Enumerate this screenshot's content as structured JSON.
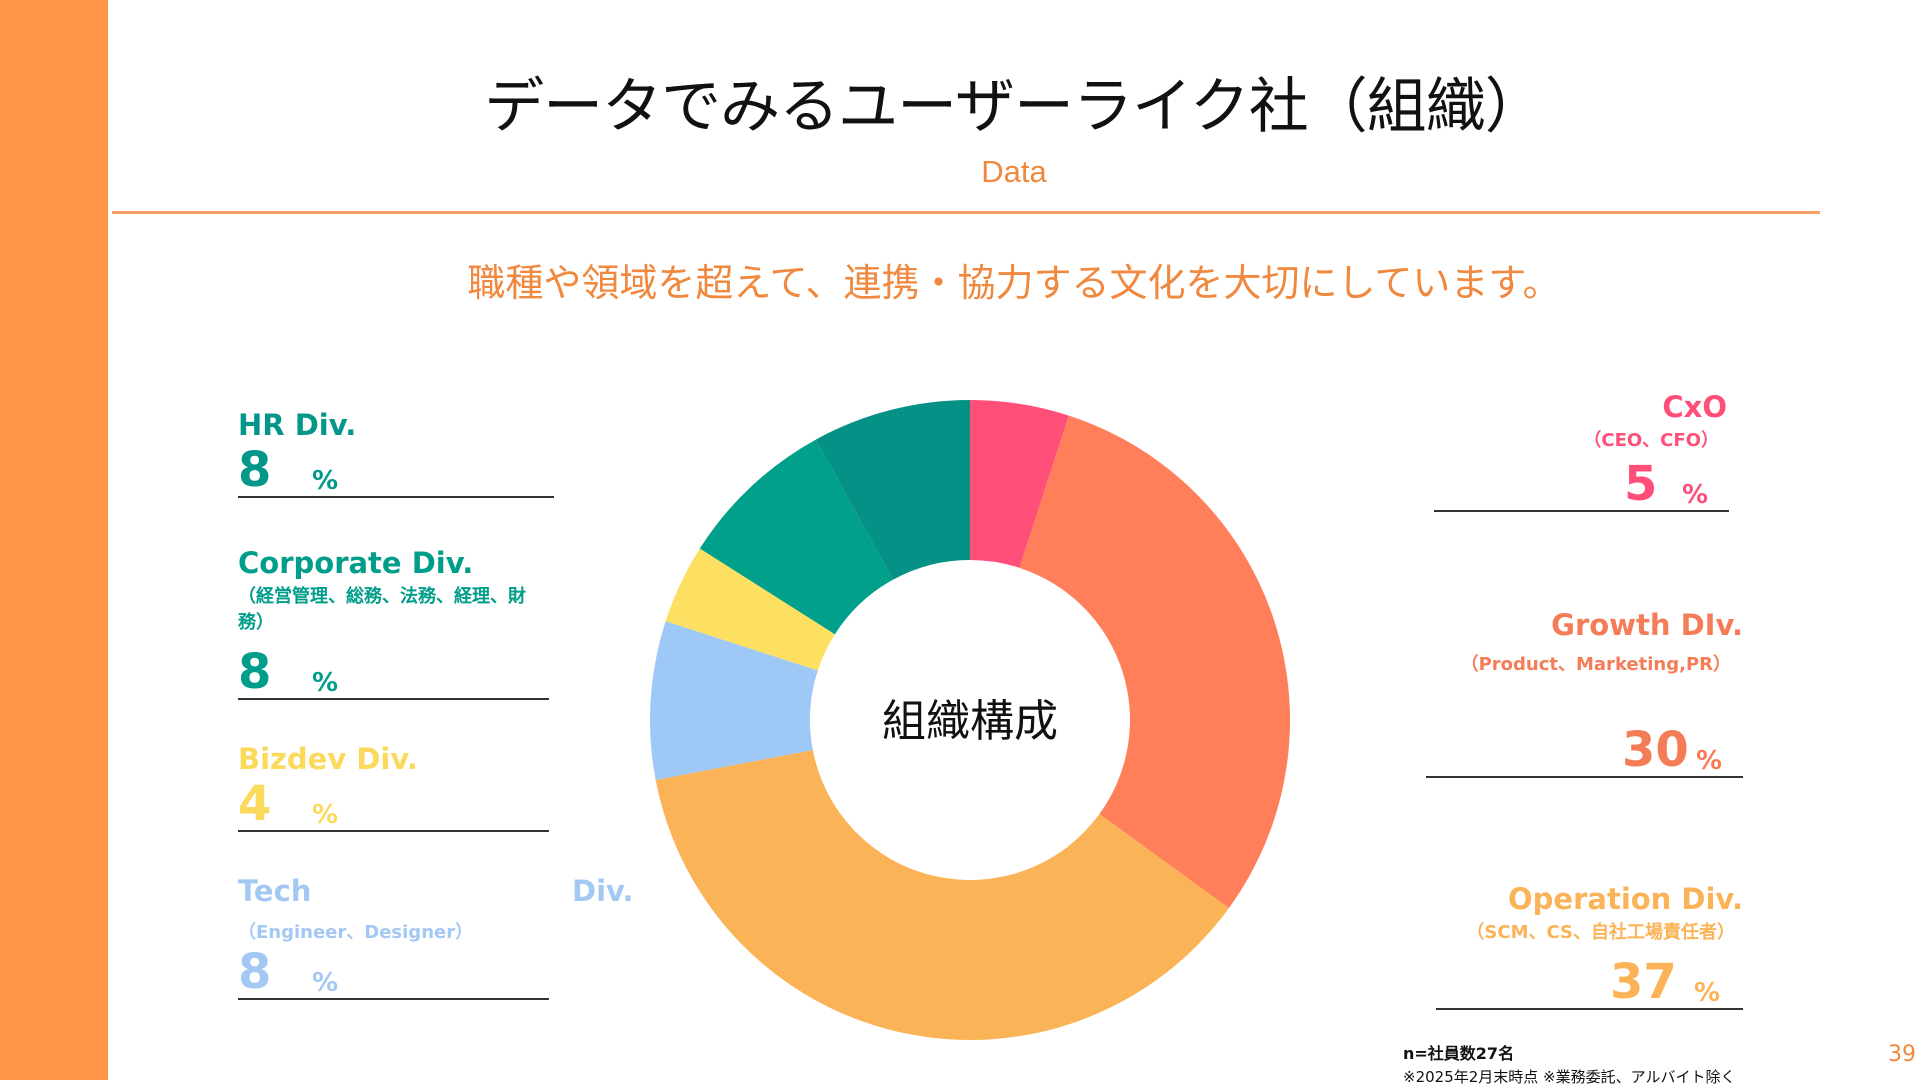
{
  "header": {
    "title": "データでみるユーザーライク社（組織）",
    "subtitle": "Data",
    "tagline": "職種や領域を超えて、連携・協力する文化を大切にしています。"
  },
  "chart_data": {
    "type": "pie",
    "center_label": "組織構成",
    "series": [
      {
        "name": "CxO",
        "value": 5,
        "color": "#ff4f79"
      },
      {
        "name": "Growth DIv.",
        "value": 30,
        "color": "#ff7f5a"
      },
      {
        "name": "Operation Div.",
        "value": 37,
        "color": "#fbb357"
      },
      {
        "name": "Tech Div.",
        "value": 8,
        "color": "#9ec9f7"
      },
      {
        "name": "Bizdev Div.",
        "value": 4,
        "color": "#fde061"
      },
      {
        "name": "Corporate Div.",
        "value": 8,
        "color": "#00a08a"
      },
      {
        "name": "HR Div.",
        "value": 8,
        "color": "#059186"
      }
    ]
  },
  "divisions": {
    "hr": {
      "name": "HR Div.",
      "value": "8",
      "unit": "%",
      "color": "#05968a"
    },
    "corporate": {
      "name": "Corporate Div.",
      "sub": "（経営管理、総務、法務、経理、財務）",
      "value": "8",
      "unit": "%",
      "color": "#009e8a"
    },
    "bizdev": {
      "name": "Bizdev Div.",
      "value": "4",
      "unit": "%",
      "color": "#fbd95a"
    },
    "tech": {
      "name_a": "Tech",
      "name_b": "Div.",
      "sub": "（Engineer、Designer）",
      "value": "8",
      "unit": "%",
      "color": "#a3c8f3"
    },
    "cxo": {
      "name": "CxO",
      "sub": "（CEO、CFO）",
      "value": "5",
      "unit": "%",
      "color": "#ff4f79"
    },
    "growth": {
      "name": "Growth DIv.",
      "sub": "（Product、Marketing,PR）",
      "value": "30",
      "unit": "%",
      "color": "#f47d58"
    },
    "operation": {
      "name": "Operation Div.",
      "sub": "（SCM、CS、自社工場責任者）",
      "value": "37",
      "unit": "%",
      "color": "#fbb357"
    }
  },
  "footer": {
    "note1": "n=社員数27名",
    "note2": "※2025年2月末時点 ※業務委託、アルバイト除く",
    "page": "39"
  }
}
